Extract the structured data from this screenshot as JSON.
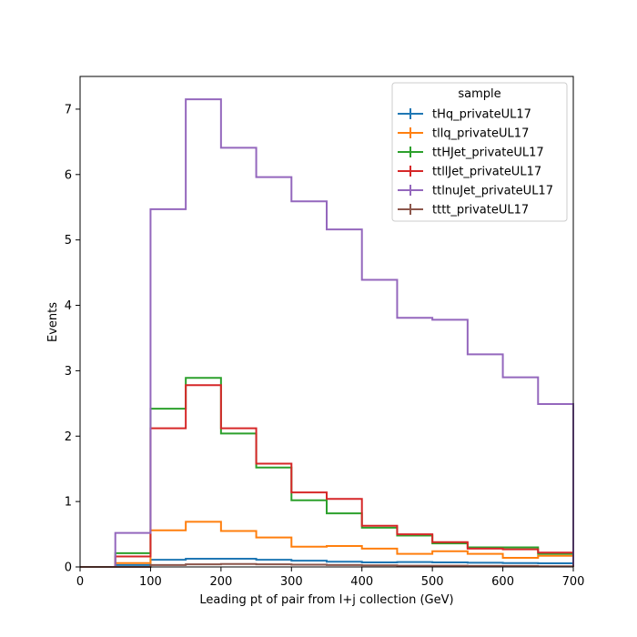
{
  "chart_data": {
    "type": "step-histogram",
    "xlabel": "Leading pt of pair from l+j collection (GeV)",
    "ylabel": "Events",
    "xlim": [
      0,
      700
    ],
    "ylim": [
      0,
      7.5
    ],
    "xticks": [
      "0",
      "100",
      "200",
      "300",
      "400",
      "500",
      "600",
      "700"
    ],
    "yticks": [
      "0",
      "1",
      "2",
      "3",
      "4",
      "5",
      "6",
      "7"
    ],
    "grid": false,
    "legend": {
      "title": "sample",
      "placement": "top-right"
    },
    "bin_edges": [
      0,
      50,
      100,
      150,
      200,
      250,
      300,
      350,
      400,
      450,
      500,
      550,
      600,
      650,
      700
    ],
    "series": [
      {
        "name": "tHq_privateUL17",
        "color": "#1f77b4",
        "values": [
          0.0,
          0.03,
          0.11,
          0.125,
          0.125,
          0.11,
          0.095,
          0.08,
          0.07,
          0.075,
          0.07,
          0.065,
          0.06,
          0.055
        ]
      },
      {
        "name": "tllq_privateUL17",
        "color": "#ff7f0e",
        "values": [
          0.0,
          0.06,
          0.56,
          0.69,
          0.55,
          0.45,
          0.31,
          0.32,
          0.28,
          0.2,
          0.24,
          0.2,
          0.14,
          0.17
        ]
      },
      {
        "name": "ttHJet_privateUL17",
        "color": "#2ca02c",
        "values": [
          0.0,
          0.21,
          2.42,
          2.89,
          2.04,
          1.52,
          1.02,
          0.82,
          0.6,
          0.48,
          0.36,
          0.3,
          0.3,
          0.2
        ]
      },
      {
        "name": "ttllJet_privateUL17",
        "color": "#d62728",
        "values": [
          0.0,
          0.16,
          2.12,
          2.78,
          2.12,
          1.58,
          1.14,
          1.04,
          0.63,
          0.5,
          0.38,
          0.28,
          0.27,
          0.22
        ]
      },
      {
        "name": "ttlnuJet_privateUL17",
        "color": "#9467bd",
        "values": [
          0.0,
          0.52,
          5.47,
          7.15,
          6.41,
          5.96,
          5.59,
          5.16,
          4.39,
          3.81,
          3.78,
          3.25,
          2.9,
          2.49
        ]
      },
      {
        "name": "tttt_privateUL17",
        "color": "#8c564b",
        "values": [
          0.0,
          0.0,
          0.03,
          0.04,
          0.045,
          0.04,
          0.035,
          0.03,
          0.025,
          0.02,
          0.02,
          0.015,
          0.015,
          0.01
        ]
      }
    ]
  }
}
